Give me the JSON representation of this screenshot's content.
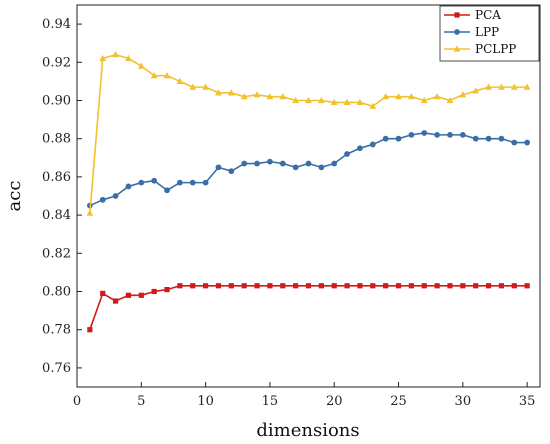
{
  "chart_data": {
    "type": "line",
    "xlabel": "dimensions",
    "ylabel": "acc",
    "xlim": [
      0,
      36
    ],
    "ylim": [
      0.75,
      0.95
    ],
    "xticks": [
      0,
      5,
      10,
      15,
      20,
      25,
      30,
      35
    ],
    "yticks": [
      0.76,
      0.78,
      0.8,
      0.82,
      0.84,
      0.86,
      0.88,
      0.9,
      0.92,
      0.94
    ],
    "grid": false,
    "legend": "top-right",
    "x": [
      1,
      2,
      3,
      4,
      5,
      6,
      7,
      8,
      9,
      10,
      11,
      12,
      13,
      14,
      15,
      16,
      17,
      18,
      19,
      20,
      21,
      22,
      23,
      24,
      25,
      26,
      27,
      28,
      29,
      30,
      31,
      32,
      33,
      34,
      35
    ],
    "series": [
      {
        "name": "PCA",
        "color": "#d11a1a",
        "marker": "square",
        "values": [
          0.78,
          0.799,
          0.795,
          0.798,
          0.798,
          0.8,
          0.801,
          0.803,
          0.803,
          0.803,
          0.803,
          0.803,
          0.803,
          0.803,
          0.803,
          0.803,
          0.803,
          0.803,
          0.803,
          0.803,
          0.803,
          0.803,
          0.803,
          0.803,
          0.803,
          0.803,
          0.803,
          0.803,
          0.803,
          0.803,
          0.803,
          0.803,
          0.803,
          0.803,
          0.803
        ]
      },
      {
        "name": "LPP",
        "color": "#3a6ea5",
        "marker": "circle",
        "values": [
          0.845,
          0.848,
          0.85,
          0.855,
          0.857,
          0.858,
          0.853,
          0.857,
          0.857,
          0.857,
          0.865,
          0.863,
          0.867,
          0.867,
          0.868,
          0.867,
          0.865,
          0.867,
          0.865,
          0.867,
          0.872,
          0.875,
          0.877,
          0.88,
          0.88,
          0.882,
          0.883,
          0.882,
          0.882,
          0.882,
          0.88,
          0.88,
          0.88,
          0.878,
          0.878
        ]
      },
      {
        "name": "PCLPP",
        "color": "#f2c12e",
        "marker": "triangle",
        "values": [
          0.841,
          0.922,
          0.924,
          0.922,
          0.918,
          0.913,
          0.913,
          0.91,
          0.907,
          0.907,
          0.904,
          0.904,
          0.902,
          0.903,
          0.902,
          0.902,
          0.9,
          0.9,
          0.9,
          0.899,
          0.899,
          0.899,
          0.897,
          0.902,
          0.902,
          0.902,
          0.9,
          0.902,
          0.9,
          0.903,
          0.905,
          0.907,
          0.907,
          0.907,
          0.907
        ]
      }
    ],
    "xtick_labels": [
      "0",
      "5",
      "10",
      "15",
      "20",
      "25",
      "30",
      "35"
    ],
    "ytick_labels": [
      "0.76",
      "0.78",
      "0.80",
      "0.82",
      "0.84",
      "0.86",
      "0.88",
      "0.90",
      "0.92",
      "0.94"
    ]
  }
}
